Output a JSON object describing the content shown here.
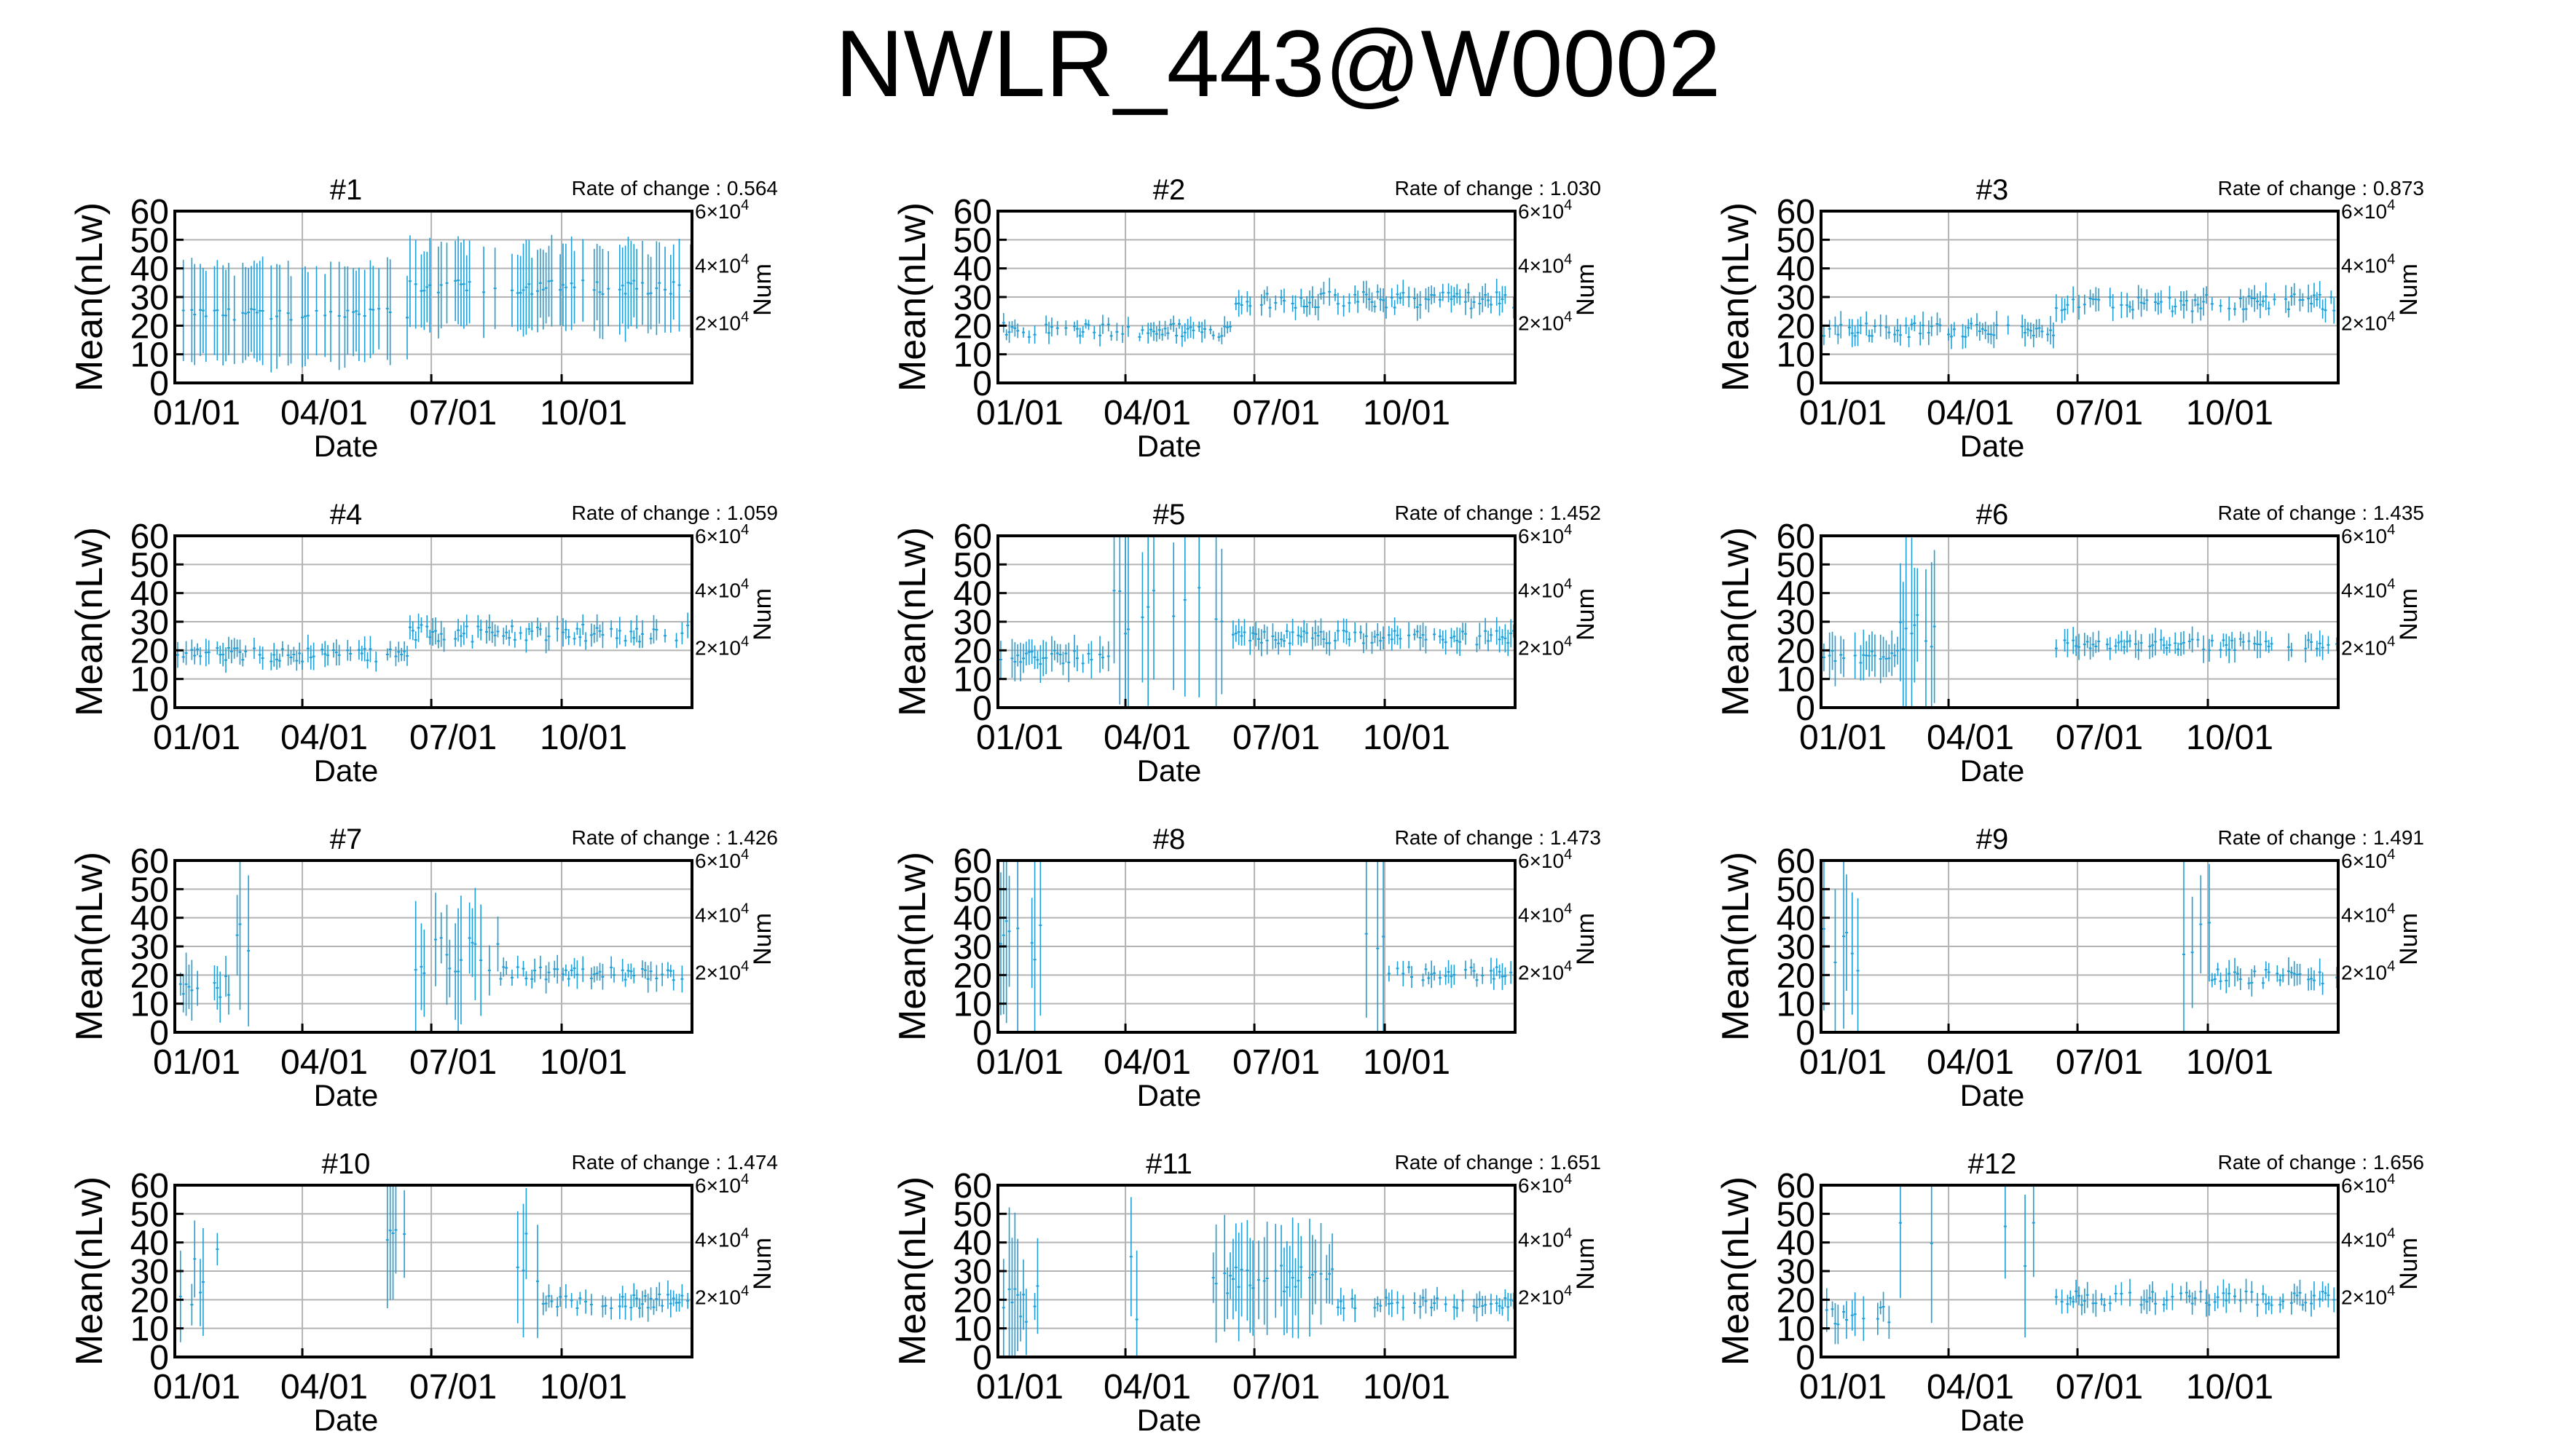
{
  "title": "NWLR_443@W0002",
  "colors": {
    "data": "#1f9fd8",
    "grid": "#b4b4b4",
    "axis": "#000000"
  },
  "chart_data": [
    {
      "type": "line",
      "title": "#1",
      "annotation": "Rate of change : 0.564",
      "xlabel": "Date",
      "ylabel": "Mean(nLw)",
      "y2label": "Num",
      "xticks": [
        "01/01",
        "04/01",
        "07/01",
        "10/01"
      ],
      "ylim": [
        0,
        60
      ],
      "yticks": [
        0,
        10,
        20,
        30,
        40,
        50,
        60
      ],
      "y2ticks": [
        {
          "text": "2×10",
          "exp": "4"
        },
        {
          "text": "4×10",
          "exp": "4"
        },
        {
          "text": "6×10",
          "exp": "4"
        }
      ],
      "grid": true,
      "profile": "p1"
    },
    {
      "type": "line",
      "title": "#2",
      "annotation": "Rate of change : 1.030",
      "xlabel": "Date",
      "ylabel": "Mean(nLw)",
      "y2label": "Num",
      "xticks": [
        "01/01",
        "04/01",
        "07/01",
        "10/01"
      ],
      "ylim": [
        0,
        60
      ],
      "yticks": [
        0,
        10,
        20,
        30,
        40,
        50,
        60
      ],
      "y2ticks": [
        {
          "text": "2×10",
          "exp": "4"
        },
        {
          "text": "4×10",
          "exp": "4"
        },
        {
          "text": "6×10",
          "exp": "4"
        }
      ],
      "grid": true,
      "profile": "p2"
    },
    {
      "type": "line",
      "title": "#3",
      "annotation": "Rate of change : 0.873",
      "xlabel": "Date",
      "ylabel": "Mean(nLw)",
      "y2label": "Num",
      "xticks": [
        "01/01",
        "04/01",
        "07/01",
        "10/01"
      ],
      "ylim": [
        0,
        60
      ],
      "yticks": [
        0,
        10,
        20,
        30,
        40,
        50,
        60
      ],
      "y2ticks": [
        {
          "text": "2×10",
          "exp": "4"
        },
        {
          "text": "4×10",
          "exp": "4"
        },
        {
          "text": "6×10",
          "exp": "4"
        }
      ],
      "grid": true,
      "profile": "p3"
    },
    {
      "type": "line",
      "title": "#4",
      "annotation": "Rate of change : 1.059",
      "xlabel": "Date",
      "ylabel": "Mean(nLw)",
      "y2label": "Num",
      "xticks": [
        "01/01",
        "04/01",
        "07/01",
        "10/01"
      ],
      "ylim": [
        0,
        60
      ],
      "yticks": [
        0,
        10,
        20,
        30,
        40,
        50,
        60
      ],
      "y2ticks": [
        {
          "text": "2×10",
          "exp": "4"
        },
        {
          "text": "4×10",
          "exp": "4"
        },
        {
          "text": "6×10",
          "exp": "4"
        }
      ],
      "grid": true,
      "profile": "p4"
    },
    {
      "type": "line",
      "title": "#5",
      "annotation": "Rate of change : 1.452",
      "xlabel": "Date",
      "ylabel": "Mean(nLw)",
      "y2label": "Num",
      "xticks": [
        "01/01",
        "04/01",
        "07/01",
        "10/01"
      ],
      "ylim": [
        0,
        60
      ],
      "yticks": [
        0,
        10,
        20,
        30,
        40,
        50,
        60
      ],
      "y2ticks": [
        {
          "text": "2×10",
          "exp": "4"
        },
        {
          "text": "4×10",
          "exp": "4"
        },
        {
          "text": "6×10",
          "exp": "4"
        }
      ],
      "grid": true,
      "profile": "p5"
    },
    {
      "type": "line",
      "title": "#6",
      "annotation": "Rate of change : 1.435",
      "xlabel": "Date",
      "ylabel": "Mean(nLw)",
      "y2label": "Num",
      "xticks": [
        "01/01",
        "04/01",
        "07/01",
        "10/01"
      ],
      "ylim": [
        0,
        60
      ],
      "yticks": [
        0,
        10,
        20,
        30,
        40,
        50,
        60
      ],
      "y2ticks": [
        {
          "text": "2×10",
          "exp": "4"
        },
        {
          "text": "4×10",
          "exp": "4"
        },
        {
          "text": "6×10",
          "exp": "4"
        }
      ],
      "grid": true,
      "profile": "p6"
    },
    {
      "type": "line",
      "title": "#7",
      "annotation": "Rate of change : 1.426",
      "xlabel": "Date",
      "ylabel": "Mean(nLw)",
      "y2label": "Num",
      "xticks": [
        "01/01",
        "04/01",
        "07/01",
        "10/01"
      ],
      "ylim": [
        0,
        60
      ],
      "yticks": [
        0,
        10,
        20,
        30,
        40,
        50,
        60
      ],
      "y2ticks": [
        {
          "text": "2×10",
          "exp": "4"
        },
        {
          "text": "4×10",
          "exp": "4"
        },
        {
          "text": "6×10",
          "exp": "4"
        }
      ],
      "grid": true,
      "profile": "p7"
    },
    {
      "type": "line",
      "title": "#8",
      "annotation": "Rate of change : 1.473",
      "xlabel": "Date",
      "ylabel": "Mean(nLw)",
      "y2label": "Num",
      "xticks": [
        "01/01",
        "04/01",
        "07/01",
        "10/01"
      ],
      "ylim": [
        0,
        60
      ],
      "yticks": [
        0,
        10,
        20,
        30,
        40,
        50,
        60
      ],
      "y2ticks": [
        {
          "text": "2×10",
          "exp": "4"
        },
        {
          "text": "4×10",
          "exp": "4"
        },
        {
          "text": "6×10",
          "exp": "4"
        }
      ],
      "grid": true,
      "profile": "p8"
    },
    {
      "type": "line",
      "title": "#9",
      "annotation": "Rate of change : 1.491",
      "xlabel": "Date",
      "ylabel": "Mean(nLw)",
      "y2label": "Num",
      "xticks": [
        "01/01",
        "04/01",
        "07/01",
        "10/01"
      ],
      "ylim": [
        0,
        60
      ],
      "yticks": [
        0,
        10,
        20,
        30,
        40,
        50,
        60
      ],
      "y2ticks": [
        {
          "text": "2×10",
          "exp": "4"
        },
        {
          "text": "4×10",
          "exp": "4"
        },
        {
          "text": "6×10",
          "exp": "4"
        }
      ],
      "grid": true,
      "profile": "p9"
    },
    {
      "type": "line",
      "title": "#10",
      "annotation": "Rate of change : 1.474",
      "xlabel": "Date",
      "ylabel": "Mean(nLw)",
      "y2label": "Num",
      "xticks": [
        "01/01",
        "04/01",
        "07/01",
        "10/01"
      ],
      "ylim": [
        0,
        60
      ],
      "yticks": [
        0,
        10,
        20,
        30,
        40,
        50,
        60
      ],
      "y2ticks": [
        {
          "text": "2×10",
          "exp": "4"
        },
        {
          "text": "4×10",
          "exp": "4"
        },
        {
          "text": "6×10",
          "exp": "4"
        }
      ],
      "grid": true,
      "profile": "p10"
    },
    {
      "type": "line",
      "title": "#11",
      "annotation": "Rate of change : 1.651",
      "xlabel": "Date",
      "ylabel": "Mean(nLw)",
      "y2label": "Num",
      "xticks": [
        "01/01",
        "04/01",
        "07/01",
        "10/01"
      ],
      "ylim": [
        0,
        60
      ],
      "yticks": [
        0,
        10,
        20,
        30,
        40,
        50,
        60
      ],
      "y2ticks": [
        {
          "text": "2×10",
          "exp": "4"
        },
        {
          "text": "4×10",
          "exp": "4"
        },
        {
          "text": "6×10",
          "exp": "4"
        }
      ],
      "grid": true,
      "profile": "p11"
    },
    {
      "type": "line",
      "title": "#12",
      "annotation": "Rate of change : 1.656",
      "xlabel": "Date",
      "ylabel": "Mean(nLw)",
      "y2label": "Num",
      "xticks": [
        "01/01",
        "04/01",
        "07/01",
        "10/01"
      ],
      "ylim": [
        0,
        60
      ],
      "yticks": [
        0,
        10,
        20,
        30,
        40,
        50,
        60
      ],
      "y2ticks": [
        {
          "text": "2×10",
          "exp": "4"
        },
        {
          "text": "4×10",
          "exp": "4"
        },
        {
          "text": "6×10",
          "exp": "4"
        }
      ],
      "grid": true,
      "profile": "p12"
    }
  ]
}
